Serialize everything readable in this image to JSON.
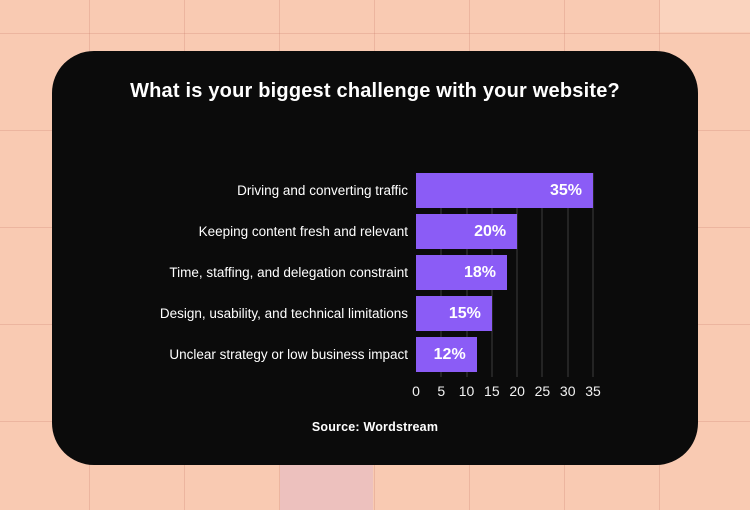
{
  "page": {
    "background_color": "#F9CAB2",
    "card_color": "#0B0B0B",
    "accent_color": "#8B5CF6"
  },
  "chart_data": {
    "type": "bar",
    "orientation": "horizontal",
    "title": "What is your biggest challenge with your website?",
    "categories": [
      "Driving and converting traffic",
      "Keeping content fresh and relevant",
      "Time, staffing, and delegation constraint",
      "Design, usability, and technical limitations",
      "Unclear strategy or low business impact"
    ],
    "values": [
      35,
      20,
      18,
      15,
      12
    ],
    "value_labels": [
      "35%",
      "20%",
      "18%",
      "15%",
      "12%"
    ],
    "x_ticks": [
      0,
      5,
      10,
      15,
      20,
      25,
      30,
      35
    ],
    "xlim": [
      0,
      35
    ],
    "xlabel": "",
    "ylabel": "",
    "grid": true,
    "legend": false,
    "bar_color": "#8B5CF6",
    "source": "Source: Wordstream"
  }
}
